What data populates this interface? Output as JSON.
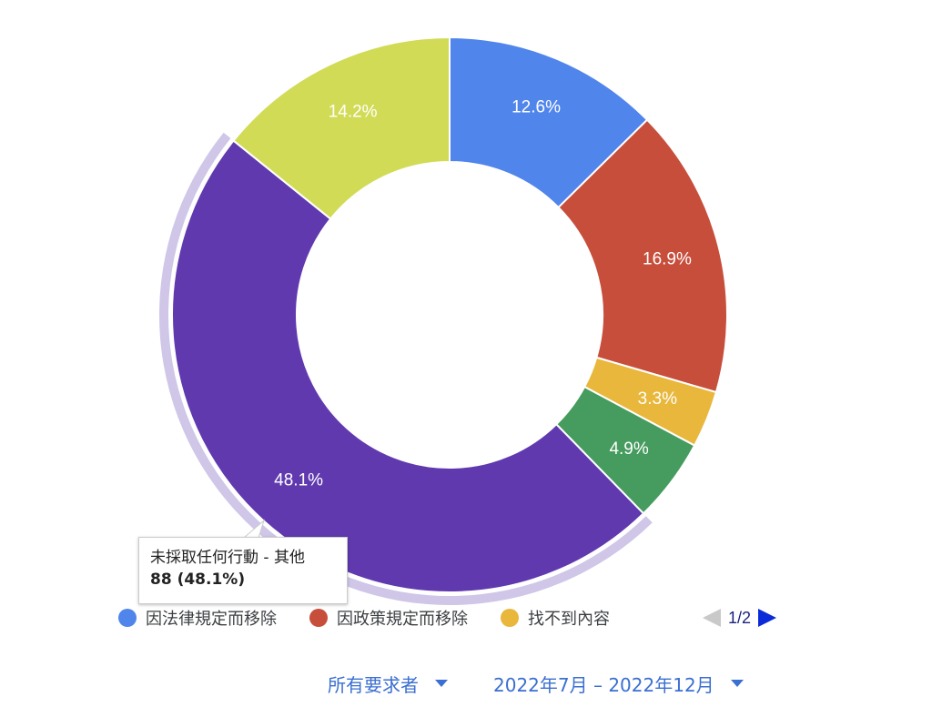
{
  "chart_data": {
    "type": "pie",
    "donut": true,
    "slices": [
      {
        "label": "因法律規定而移除",
        "value": 12.6,
        "display": "12.6%",
        "color": "#5085ec"
      },
      {
        "label": "因政策規定而移除",
        "value": 16.9,
        "display": "16.9%",
        "color": "#c84e3c"
      },
      {
        "label": "找不到內容",
        "value": 3.3,
        "display": "3.3%",
        "color": "#e8b73c"
      },
      {
        "value": 4.9,
        "display": "4.9%",
        "color": "#469b5e"
      },
      {
        "label": "未採取任何行動 - 其他",
        "value": 48.1,
        "display": "48.1%",
        "color": "#6039af",
        "highlighted": true
      },
      {
        "value": 14.2,
        "display": "14.2%",
        "color": "#d1db56"
      }
    ],
    "highlight_color": "#cfc6e8"
  },
  "tooltip": {
    "title": "未採取任何行動 - 其他",
    "value": "88 (48.1%)"
  },
  "legend": {
    "items": [
      {
        "label": "因法律規定而移除",
        "color": "#5085ec"
      },
      {
        "label": "因政策規定而移除",
        "color": "#c84e3c"
      },
      {
        "label": "找不到內容",
        "color": "#e8b73c"
      }
    ],
    "page": "1/2"
  },
  "filters": {
    "requester": "所有要求者",
    "date_range": "2022年7月 – 2022年12月"
  }
}
